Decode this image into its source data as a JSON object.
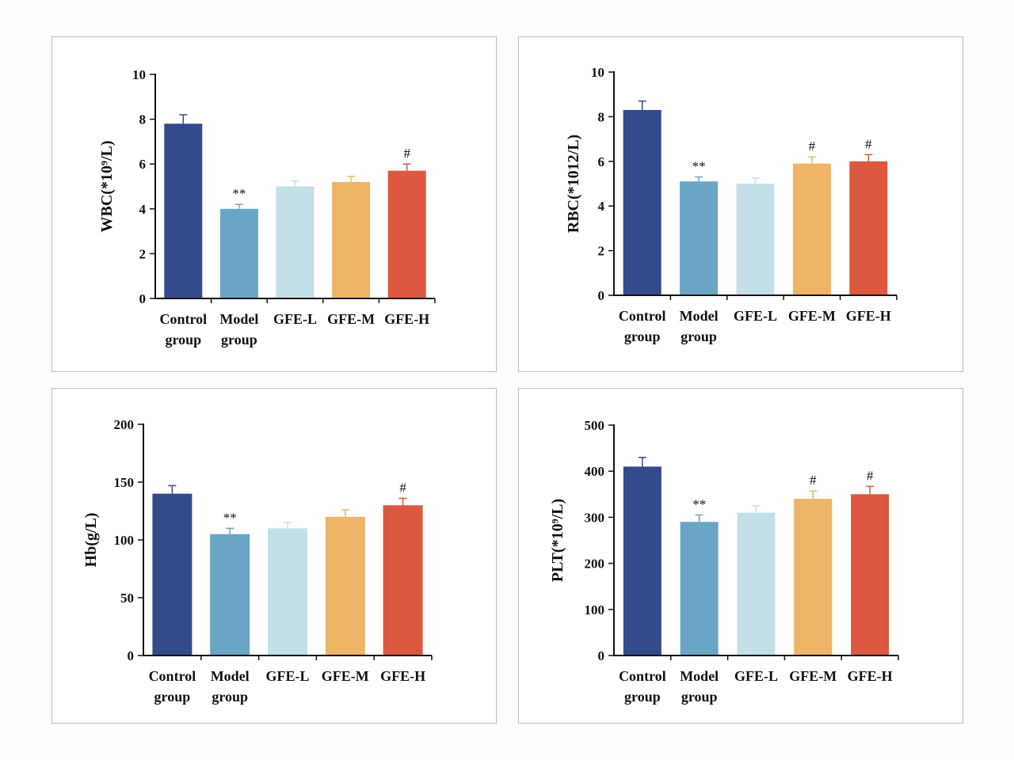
{
  "colors": {
    "Control group": "#334b8c",
    "Model group": "#6aa5c5",
    "GFE-L": "#c3e0e8",
    "GFE-M": "#eeb467",
    "GFE-H": "#dd5840"
  },
  "chart_data": [
    {
      "id": "wbc",
      "type": "bar",
      "ylabel": "WBC(*10⁹/L)",
      "ylim": [
        0,
        10
      ],
      "yticks": [
        "0",
        "2",
        "4",
        "6",
        "8",
        "10"
      ],
      "categories": [
        [
          "Control",
          "group"
        ],
        [
          "Model",
          "group"
        ],
        [
          "GFE-L"
        ],
        [
          "GFE-M"
        ],
        [
          "GFE-H"
        ]
      ],
      "series_keys": [
        "Control group",
        "Model group",
        "GFE-L",
        "GFE-M",
        "GFE-H"
      ],
      "values": [
        7.8,
        4.0,
        5.0,
        5.2,
        5.7
      ],
      "errors": [
        0.4,
        0.2,
        0.25,
        0.25,
        0.3
      ],
      "annotations": [
        "",
        "**",
        "",
        "",
        "#"
      ]
    },
    {
      "id": "rbc",
      "type": "bar",
      "ylabel": "RBC(*1012/L)",
      "ylim": [
        0,
        10
      ],
      "yticks": [
        "0",
        "2",
        "4",
        "6",
        "8",
        "10"
      ],
      "categories": [
        [
          "Control",
          "group"
        ],
        [
          "Model",
          "group"
        ],
        [
          "GFE-L"
        ],
        [
          "GFE-M"
        ],
        [
          "GFE-H"
        ]
      ],
      "series_keys": [
        "Control group",
        "Model group",
        "GFE-L",
        "GFE-M",
        "GFE-H"
      ],
      "values": [
        8.3,
        5.1,
        5.0,
        5.9,
        6.0
      ],
      "errors": [
        0.4,
        0.2,
        0.25,
        0.3,
        0.3
      ],
      "annotations": [
        "",
        "**",
        "",
        "#",
        "#"
      ]
    },
    {
      "id": "hb",
      "type": "bar",
      "ylabel": "Hb(g/L)",
      "ylim": [
        0,
        200
      ],
      "yticks": [
        "0",
        "50",
        "100",
        "150",
        "200"
      ],
      "categories": [
        [
          "Control",
          "group"
        ],
        [
          "Model",
          "group"
        ],
        [
          "GFE-L"
        ],
        [
          "GFE-M"
        ],
        [
          "GFE-H"
        ]
      ],
      "series_keys": [
        "Control group",
        "Model group",
        "GFE-L",
        "GFE-M",
        "GFE-H"
      ],
      "values": [
        140,
        105,
        110,
        120,
        130
      ],
      "errors": [
        7,
        5,
        5,
        6,
        6
      ],
      "annotations": [
        "",
        "**",
        "",
        "",
        "#"
      ]
    },
    {
      "id": "plt",
      "type": "bar",
      "ylabel": "PLT(*10⁹/L)",
      "ylim": [
        0,
        500
      ],
      "yticks": [
        "0",
        "100",
        "200",
        "300",
        "400",
        "500"
      ],
      "categories": [
        [
          "Control",
          "group"
        ],
        [
          "Model",
          "group"
        ],
        [
          "GFE-L"
        ],
        [
          "GFE-M"
        ],
        [
          "GFE-H"
        ]
      ],
      "series_keys": [
        "Control group",
        "Model group",
        "GFE-L",
        "GFE-M",
        "GFE-H"
      ],
      "values": [
        410,
        290,
        310,
        340,
        350
      ],
      "errors": [
        20,
        15,
        15,
        17,
        17
      ],
      "annotations": [
        "",
        "**",
        "",
        "#",
        "#"
      ]
    }
  ]
}
